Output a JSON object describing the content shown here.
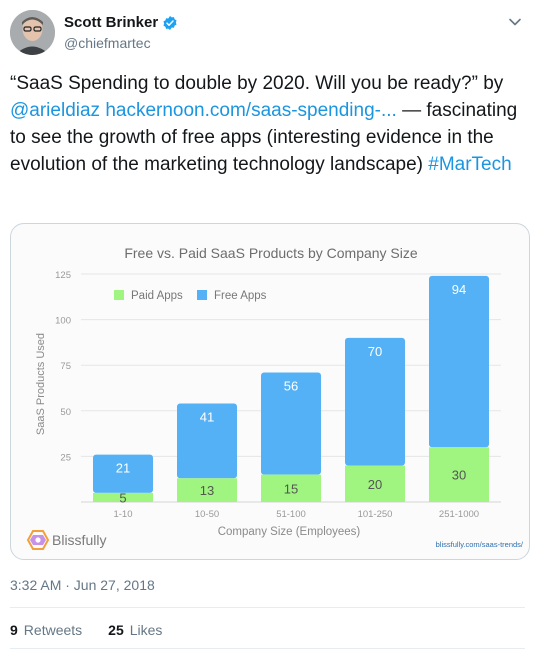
{
  "tweet": {
    "author_name": "Scott Brinker",
    "handle": "@chiefmartec",
    "text_before": "“SaaS Spending to double by 2020. Will you be ready?” by ",
    "mention": "@arieldiaz",
    "link": "hackernoon.com/saas-spending-...",
    "text_after": " — fascinating to see the growth of free apps (interesting evidence in the evolution of the marketing technology landscape) ",
    "hashtag": "#MarTech",
    "timestamp": "3:32 AM · Jun 27, 2018",
    "retweets_count": "9",
    "retweets_label": "Retweets",
    "likes_count": "25",
    "likes_label": "Likes"
  },
  "icons": {
    "verified": "verified-badge-icon",
    "menu": "chevron-down-icon",
    "brand": "blissfully-logo-icon"
  },
  "colors": {
    "link": "#1b95e0",
    "paid": "#9ff57f",
    "free": "#55b1f5"
  },
  "media": {
    "brand": "Blissfully",
    "source": "blissfully.com/saas-trends/"
  },
  "chart_data": {
    "type": "bar",
    "stacked": true,
    "title": "Free vs. Paid SaaS Products by Company Size",
    "xlabel": "Company Size (Employees)",
    "ylabel": "SaaS Products Used",
    "ylim": [
      0,
      125
    ],
    "yticks": [
      25,
      50,
      75,
      100,
      125
    ],
    "categories": [
      "1-10",
      "10-50",
      "51-100",
      "101-250",
      "251-1000"
    ],
    "series": [
      {
        "name": "Paid Apps",
        "values": [
          5,
          13,
          15,
          20,
          30
        ],
        "color": "#9ff57f"
      },
      {
        "name": "Free Apps",
        "values": [
          21,
          41,
          56,
          70,
          94
        ],
        "color": "#55b1f5"
      }
    ],
    "legend": "top-left",
    "grid": true
  }
}
